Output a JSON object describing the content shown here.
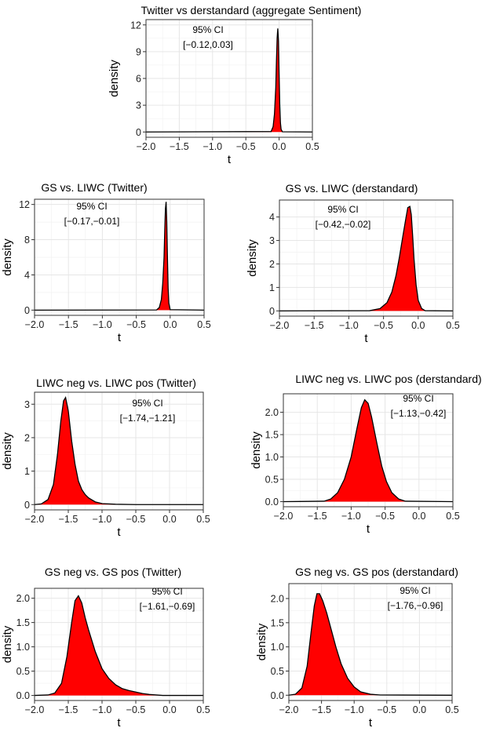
{
  "chart_data": [
    {
      "type": "area",
      "title": "Twitter vs derstandard (aggregate Sentiment)",
      "xlabel": "t",
      "ylabel": "density",
      "xlim": [
        -2.0,
        0.5
      ],
      "ylim": [
        0,
        12
      ],
      "xticks": [
        -2.0,
        -1.5,
        -1.0,
        -0.5,
        0.0,
        0.5
      ],
      "xtick_labels": [
        "−2.0",
        "−1.5",
        "−1.0",
        "−0.5",
        "0.0",
        "0.5"
      ],
      "yticks": [
        0,
        3,
        6,
        9,
        12
      ],
      "ytick_labels": [
        "0",
        "3",
        "6",
        "9",
        "12"
      ],
      "ci_title": "95% CI",
      "ci_label": "[−0.12,0.03]",
      "fill_color": "#ff0000",
      "line_color": "#000000",
      "series": [
        {
          "x": [
            -2.0,
            -0.12,
            -0.09,
            -0.07,
            -0.05,
            -0.04,
            -0.03,
            -0.02,
            -0.01,
            0.0,
            0.01,
            0.02,
            0.03,
            0.05,
            0.5
          ],
          "y": [
            0,
            0.05,
            0.6,
            2.0,
            5.0,
            8.0,
            10.5,
            11.6,
            10.2,
            6.5,
            3.0,
            1.0,
            0.3,
            0.02,
            0
          ]
        }
      ]
    },
    {
      "type": "area",
      "title": "GS vs. LIWC (Twitter)",
      "xlabel": "t",
      "ylabel": "density",
      "xlim": [
        -2.0,
        0.5
      ],
      "ylim": [
        0,
        12
      ],
      "xticks": [
        -2.0,
        -1.5,
        -1.0,
        -0.5,
        0.0,
        0.5
      ],
      "xtick_labels": [
        "−2.0",
        "−1.5",
        "−1.0",
        "−0.5",
        "0.0",
        "0.5"
      ],
      "yticks": [
        0,
        4,
        8,
        12
      ],
      "ytick_labels": [
        "0",
        "4",
        "8",
        "12"
      ],
      "ci_title": "95% CI",
      "ci_label": "[−0.17,−0.01]",
      "fill_color": "#ff0000",
      "line_color": "#000000",
      "series": [
        {
          "x": [
            -2.0,
            -0.2,
            -0.16,
            -0.13,
            -0.11,
            -0.09,
            -0.08,
            -0.07,
            -0.06,
            -0.05,
            -0.04,
            -0.03,
            -0.02,
            0.0,
            0.5
          ],
          "y": [
            0,
            0.02,
            0.3,
            1.2,
            3.0,
            6.0,
            9.0,
            11.5,
            12.3,
            10.0,
            6.0,
            2.5,
            0.8,
            0.05,
            0
          ]
        }
      ]
    },
    {
      "type": "area",
      "title": "GS vs. LIWC (derstandard)",
      "xlabel": "t",
      "ylabel": "density",
      "xlim": [
        -2.0,
        0.5
      ],
      "ylim": [
        0,
        4.5
      ],
      "xticks": [
        -2.0,
        -1.5,
        -1.0,
        -0.5,
        0.0,
        0.5
      ],
      "xtick_labels": [
        "−2.0",
        "−1.5",
        "−1.0",
        "−0.5",
        "0.0",
        "0.5"
      ],
      "yticks": [
        0,
        1,
        2,
        3,
        4
      ],
      "ytick_labels": [
        "0",
        "1",
        "2",
        "3",
        "4"
      ],
      "ci_title": "95% CI",
      "ci_label": "[−0.42,−0.02]",
      "fill_color": "#ff0000",
      "line_color": "#000000",
      "series": [
        {
          "x": [
            -2.0,
            -0.7,
            -0.55,
            -0.45,
            -0.38,
            -0.32,
            -0.27,
            -0.22,
            -0.18,
            -0.15,
            -0.12,
            -0.1,
            -0.08,
            -0.06,
            -0.03,
            0.0,
            0.05,
            0.1,
            0.5
          ],
          "y": [
            0,
            0.01,
            0.1,
            0.35,
            0.8,
            1.5,
            2.3,
            3.2,
            3.9,
            4.4,
            4.45,
            4.1,
            3.2,
            2.2,
            1.1,
            0.45,
            0.1,
            0.01,
            0
          ]
        }
      ]
    },
    {
      "type": "area",
      "title": "LIWC neg vs. LIWC pos (Twitter)",
      "xlabel": "t",
      "ylabel": "density",
      "xlim": [
        -2.0,
        0.5
      ],
      "ylim": [
        0,
        3.2
      ],
      "xticks": [
        -2.0,
        -1.5,
        -1.0,
        -0.5,
        0.0,
        0.5
      ],
      "xtick_labels": [
        "−2.0",
        "−1.5",
        "−1.0",
        "−0.5",
        "0.0",
        "0.5"
      ],
      "yticks": [
        0,
        1,
        2,
        3
      ],
      "ytick_labels": [
        "0",
        "1",
        "2",
        "3"
      ],
      "ci_title": "95% CI",
      "ci_label": "[−1.74,−1.21]",
      "fill_color": "#ff0000",
      "line_color": "#000000",
      "series": [
        {
          "x": [
            -2.0,
            -1.9,
            -1.8,
            -1.72,
            -1.66,
            -1.61,
            -1.57,
            -1.54,
            -1.5,
            -1.45,
            -1.4,
            -1.35,
            -1.3,
            -1.25,
            -1.2,
            -1.1,
            -1.0,
            -0.8,
            -0.5,
            0.5
          ],
          "y": [
            0,
            0.02,
            0.15,
            0.6,
            1.5,
            2.5,
            3.1,
            3.2,
            2.8,
            1.9,
            1.2,
            0.7,
            0.45,
            0.3,
            0.2,
            0.08,
            0.03,
            0.01,
            0,
            0
          ]
        }
      ]
    },
    {
      "type": "area",
      "title": "LIWC neg vs. LIWC pos (derstandard)",
      "xlabel": "t",
      "ylabel": "density",
      "xlim": [
        -2.0,
        0.5
      ],
      "ylim": [
        0,
        2.3
      ],
      "xticks": [
        -2.0,
        -1.5,
        -1.0,
        -0.5,
        0.0,
        0.5
      ],
      "xtick_labels": [
        "−2.0",
        "−1.5",
        "−1.0",
        "−0.5",
        "0.0",
        "0.5"
      ],
      "yticks": [
        0,
        0.5,
        1,
        1.5,
        2
      ],
      "ytick_labels": [
        "0.0",
        "0.5",
        "1.0",
        "1.5",
        "2.0"
      ],
      "ci_title": "95% CI",
      "ci_label": "[−1.13,−0.42]",
      "fill_color": "#ff0000",
      "line_color": "#000000",
      "series": [
        {
          "x": [
            -2.0,
            -1.4,
            -1.3,
            -1.2,
            -1.1,
            -1.0,
            -0.92,
            -0.85,
            -0.8,
            -0.75,
            -0.7,
            -0.62,
            -0.55,
            -0.48,
            -0.4,
            -0.3,
            -0.2,
            0.5
          ],
          "y": [
            0,
            0.01,
            0.06,
            0.2,
            0.5,
            1.0,
            1.6,
            2.1,
            2.28,
            2.2,
            1.9,
            1.3,
            0.8,
            0.45,
            0.2,
            0.06,
            0.01,
            0
          ]
        }
      ]
    },
    {
      "type": "area",
      "title": "GS neg vs. GS pos (Twitter)",
      "xlabel": "t",
      "ylabel": "density",
      "xlim": [
        -2.0,
        0.5
      ],
      "ylim": [
        0,
        2.1
      ],
      "xticks": [
        -2.0,
        -1.5,
        -1.0,
        -0.5,
        0.0,
        0.5
      ],
      "xtick_labels": [
        "−2.0",
        "−1.5",
        "−1.0",
        "−0.5",
        "0.0",
        "0.5"
      ],
      "yticks": [
        0,
        0.5,
        1,
        1.5,
        2
      ],
      "ytick_labels": [
        "0.0",
        "0.5",
        "1.0",
        "1.5",
        "2.0"
      ],
      "ci_title": "95% CI",
      "ci_label": "[−1.61,−0.69]",
      "fill_color": "#ff0000",
      "line_color": "#000000",
      "series": [
        {
          "x": [
            -2.0,
            -1.8,
            -1.7,
            -1.6,
            -1.52,
            -1.45,
            -1.4,
            -1.35,
            -1.3,
            -1.25,
            -1.2,
            -1.1,
            -1.0,
            -0.9,
            -0.8,
            -0.7,
            -0.6,
            -0.5,
            -0.4,
            -0.3,
            -0.1,
            0.5
          ],
          "y": [
            0,
            0.01,
            0.05,
            0.25,
            0.8,
            1.5,
            1.95,
            2.05,
            1.9,
            1.6,
            1.35,
            0.9,
            0.55,
            0.35,
            0.22,
            0.14,
            0.1,
            0.07,
            0.04,
            0.02,
            0.0,
            0
          ]
        }
      ]
    },
    {
      "type": "area",
      "title": "GS neg vs. GS pos (derstandard)",
      "xlabel": "t",
      "ylabel": "density",
      "xlim": [
        -2.0,
        0.5
      ],
      "ylim": [
        0,
        2.2
      ],
      "xticks": [
        -2.0,
        -1.5,
        -1.0,
        -0.5,
        0.0,
        0.5
      ],
      "xtick_labels": [
        "−2.0",
        "−1.5",
        "−1.0",
        "−0.5",
        "0.0",
        "0.5"
      ],
      "yticks": [
        0,
        0.5,
        1,
        1.5,
        2
      ],
      "ytick_labels": [
        "0.0",
        "0.5",
        "1.0",
        "1.5",
        "2.0"
      ],
      "ci_title": "95% CI",
      "ci_label": "[−1.76,−0.96]",
      "fill_color": "#ff0000",
      "line_color": "#000000",
      "series": [
        {
          "x": [
            -2.0,
            -1.9,
            -1.8,
            -1.72,
            -1.66,
            -1.61,
            -1.57,
            -1.53,
            -1.48,
            -1.42,
            -1.35,
            -1.28,
            -1.2,
            -1.1,
            -1.0,
            -0.9,
            -0.75,
            -0.6,
            0.5
          ],
          "y": [
            0,
            0.02,
            0.15,
            0.6,
            1.3,
            1.85,
            2.1,
            2.1,
            1.95,
            1.7,
            1.35,
            1.0,
            0.65,
            0.35,
            0.17,
            0.07,
            0.02,
            0.005,
            0
          ]
        }
      ]
    }
  ]
}
